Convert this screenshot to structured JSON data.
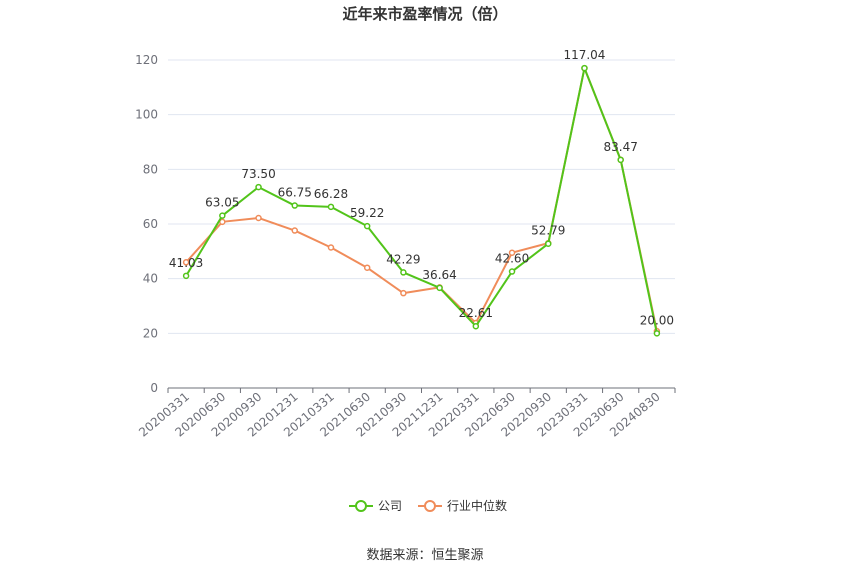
{
  "chart_data": {
    "type": "line",
    "title": "近年来市盈率情况（倍）",
    "categories": [
      "20200331",
      "20200630",
      "20200930",
      "20201231",
      "20210331",
      "20210630",
      "20210930",
      "20211231",
      "20220331",
      "20220630",
      "20220930",
      "20230331",
      "20230630",
      "20240830"
    ],
    "ylim": [
      0,
      120
    ],
    "yticks": [
      0,
      20,
      40,
      60,
      80,
      100,
      120
    ],
    "grid": true,
    "legend_position": "bottom",
    "series": [
      {
        "name": "公司",
        "color": "#52c41a",
        "values": [
          41.03,
          63.05,
          73.5,
          66.75,
          66.28,
          59.22,
          42.29,
          36.64,
          22.61,
          42.6,
          52.79,
          117.04,
          83.47,
          20.0
        ],
        "labels": [
          "41.03",
          "63.05",
          "73.50",
          "66.75",
          "66.28",
          "59.22",
          "42.29",
          "36.64",
          "22.61",
          "42.60",
          "52.79",
          "117.04",
          "83.47",
          "20.00"
        ]
      },
      {
        "name": "行业中位数",
        "color": "#f08c5a",
        "values": [
          46.0,
          60.8,
          62.2,
          57.6,
          51.4,
          44.0,
          34.7,
          36.8,
          23.8,
          49.5,
          53.0,
          117.0,
          83.5,
          20.8
        ]
      }
    ]
  },
  "source": "数据来源：恒生聚源"
}
